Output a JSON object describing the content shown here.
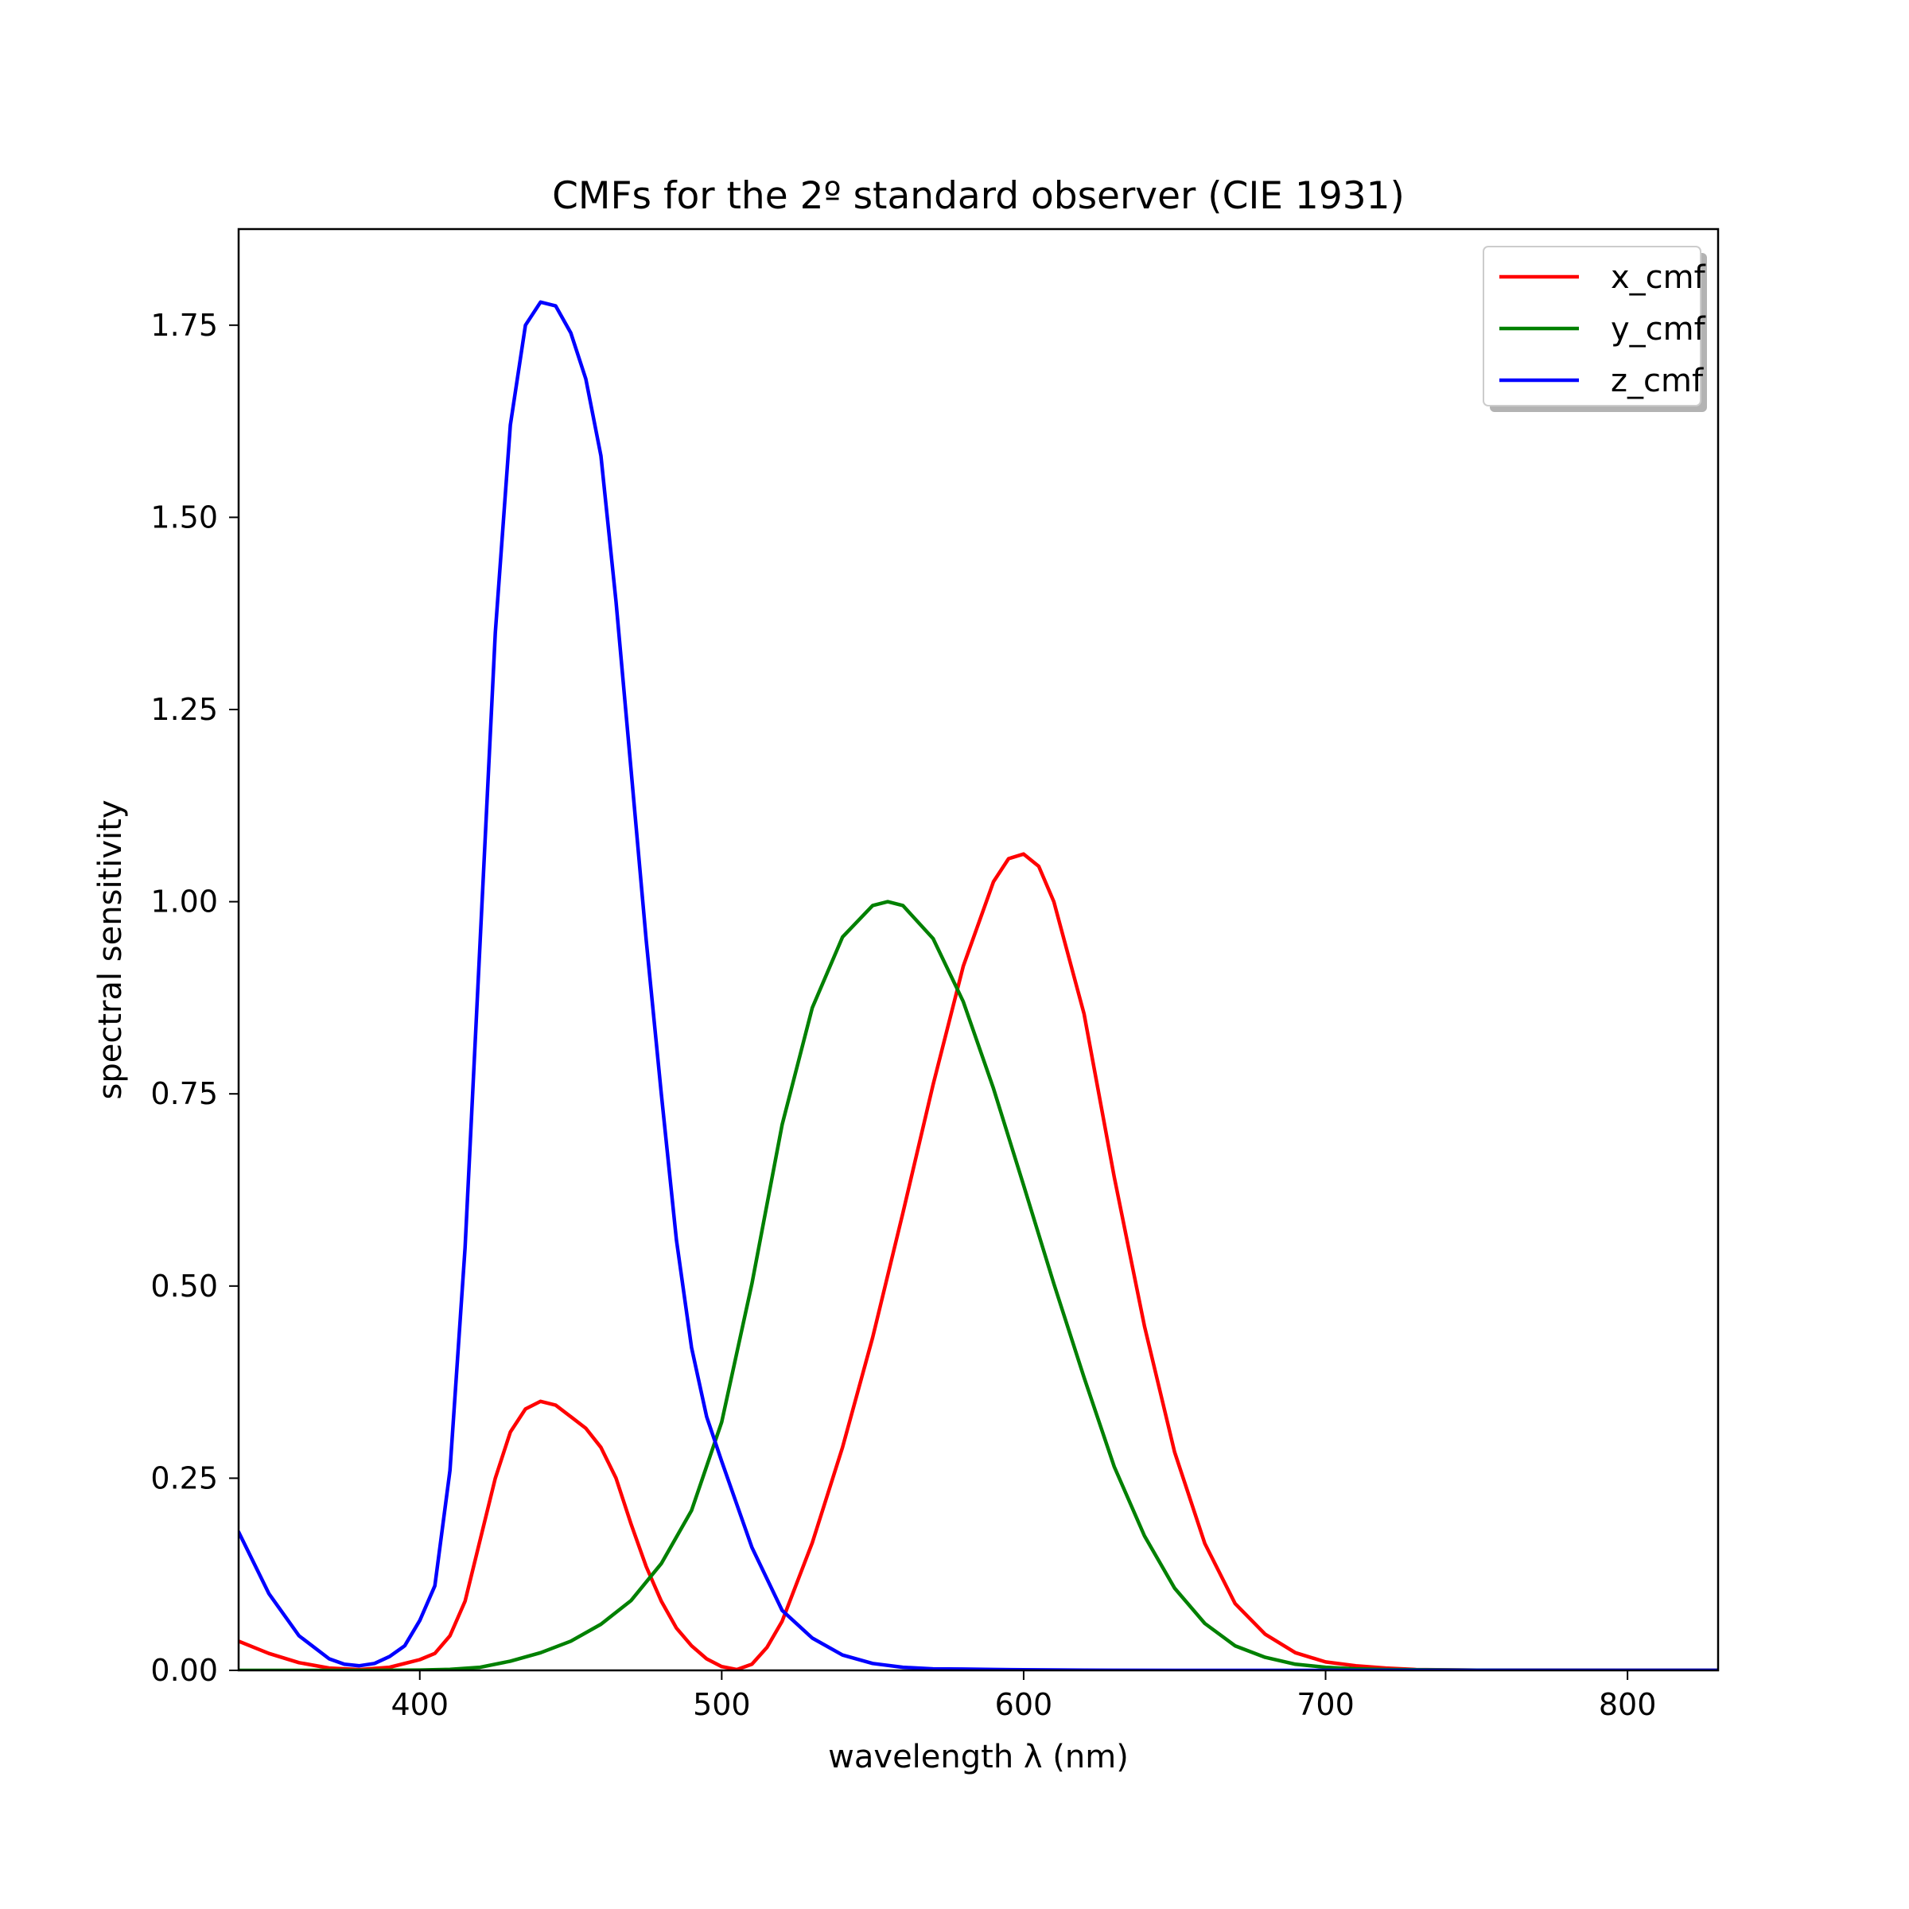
{
  "chart_data": {
    "type": "line",
    "title": "CMFs for the 2º standard observer (CIE 1931)",
    "xlabel": "wavelength λ (nm)",
    "ylabel": "spectral sensitivity",
    "xlim": [
      340,
      830
    ],
    "ylim": [
      0,
      1.875
    ],
    "xticks": [
      400,
      500,
      600,
      700,
      800
    ],
    "xtick_labels": [
      "400",
      "500",
      "600",
      "700",
      "800"
    ],
    "yticks": [
      0,
      0.25,
      0.5,
      0.75,
      1.0,
      1.25,
      1.5,
      1.75
    ],
    "ytick_labels": [
      "0.00",
      "0.25",
      "0.50",
      "0.75",
      "1.00",
      "1.25",
      "1.50",
      "1.75"
    ],
    "legend_position": "top-right",
    "grid": false,
    "series": [
      {
        "name": "x_cmf",
        "color": "#ff0000",
        "points": [
          [
            340,
            0.038
          ],
          [
            350,
            0.022
          ],
          [
            360,
            0.01
          ],
          [
            370,
            0.003
          ],
          [
            380,
            0.001
          ],
          [
            390,
            0.004
          ],
          [
            400,
            0.014
          ],
          [
            405,
            0.022
          ],
          [
            410,
            0.045
          ],
          [
            415,
            0.09
          ],
          [
            420,
            0.17
          ],
          [
            425,
            0.25
          ],
          [
            430,
            0.31
          ],
          [
            435,
            0.34
          ],
          [
            440,
            0.35
          ],
          [
            445,
            0.345
          ],
          [
            450,
            0.33
          ],
          [
            455,
            0.315
          ],
          [
            460,
            0.29
          ],
          [
            465,
            0.25
          ],
          [
            470,
            0.19
          ],
          [
            475,
            0.135
          ],
          [
            480,
            0.09
          ],
          [
            485,
            0.055
          ],
          [
            490,
            0.032
          ],
          [
            495,
            0.015
          ],
          [
            500,
            0.005
          ],
          [
            505,
            0.001
          ],
          [
            510,
            0.008
          ],
          [
            515,
            0.03
          ],
          [
            520,
            0.064
          ],
          [
            530,
            0.166
          ],
          [
            540,
            0.29
          ],
          [
            550,
            0.433
          ],
          [
            560,
            0.595
          ],
          [
            570,
            0.762
          ],
          [
            580,
            0.916
          ],
          [
            590,
            1.026
          ],
          [
            595,
            1.056
          ],
          [
            600,
            1.062
          ],
          [
            605,
            1.046
          ],
          [
            610,
            1.0
          ],
          [
            620,
            0.854
          ],
          [
            630,
            0.642
          ],
          [
            640,
            0.448
          ],
          [
            650,
            0.284
          ],
          [
            660,
            0.165
          ],
          [
            670,
            0.087
          ],
          [
            680,
            0.047
          ],
          [
            690,
            0.023
          ],
          [
            700,
            0.011
          ],
          [
            710,
            0.006
          ],
          [
            720,
            0.003
          ],
          [
            730,
            0.001
          ],
          [
            750,
            0.0003
          ],
          [
            800,
            0.0
          ],
          [
            830,
            0.0
          ]
        ]
      },
      {
        "name": "y_cmf",
        "color": "#008000",
        "points": [
          [
            340,
            0.0
          ],
          [
            380,
            0.0
          ],
          [
            400,
            0.0004
          ],
          [
            410,
            0.0012
          ],
          [
            420,
            0.004
          ],
          [
            430,
            0.012
          ],
          [
            440,
            0.023
          ],
          [
            450,
            0.038
          ],
          [
            460,
            0.06
          ],
          [
            470,
            0.091
          ],
          [
            480,
            0.139
          ],
          [
            490,
            0.208
          ],
          [
            500,
            0.323
          ],
          [
            510,
            0.503
          ],
          [
            520,
            0.71
          ],
          [
            530,
            0.862
          ],
          [
            540,
            0.954
          ],
          [
            550,
            0.995
          ],
          [
            555,
            1.0
          ],
          [
            560,
            0.995
          ],
          [
            570,
            0.952
          ],
          [
            580,
            0.87
          ],
          [
            590,
            0.757
          ],
          [
            600,
            0.631
          ],
          [
            610,
            0.503
          ],
          [
            620,
            0.381
          ],
          [
            630,
            0.265
          ],
          [
            640,
            0.175
          ],
          [
            650,
            0.107
          ],
          [
            660,
            0.061
          ],
          [
            670,
            0.032
          ],
          [
            680,
            0.017
          ],
          [
            690,
            0.008
          ],
          [
            700,
            0.004
          ],
          [
            710,
            0.002
          ],
          [
            720,
            0.001
          ],
          [
            750,
            0.0002
          ],
          [
            800,
            0.0
          ],
          [
            830,
            0.0
          ]
        ]
      },
      {
        "name": "z_cmf",
        "color": "#0000ff",
        "points": [
          [
            340,
            0.18
          ],
          [
            350,
            0.1
          ],
          [
            360,
            0.045
          ],
          [
            370,
            0.015
          ],
          [
            375,
            0.008
          ],
          [
            380,
            0.006
          ],
          [
            385,
            0.009
          ],
          [
            390,
            0.018
          ],
          [
            395,
            0.032
          ],
          [
            400,
            0.065
          ],
          [
            405,
            0.11
          ],
          [
            410,
            0.26
          ],
          [
            415,
            0.55
          ],
          [
            420,
            0.95
          ],
          [
            425,
            1.35
          ],
          [
            430,
            1.62
          ],
          [
            435,
            1.75
          ],
          [
            440,
            1.78
          ],
          [
            445,
            1.775
          ],
          [
            450,
            1.74
          ],
          [
            455,
            1.68
          ],
          [
            460,
            1.58
          ],
          [
            465,
            1.39
          ],
          [
            470,
            1.17
          ],
          [
            475,
            0.95
          ],
          [
            480,
            0.75
          ],
          [
            485,
            0.56
          ],
          [
            490,
            0.42
          ],
          [
            495,
            0.33
          ],
          [
            500,
            0.272
          ],
          [
            510,
            0.16
          ],
          [
            520,
            0.078
          ],
          [
            530,
            0.042
          ],
          [
            540,
            0.02
          ],
          [
            550,
            0.009
          ],
          [
            560,
            0.004
          ],
          [
            570,
            0.002
          ],
          [
            580,
            0.0017
          ],
          [
            590,
            0.0011
          ],
          [
            600,
            0.0008
          ],
          [
            620,
            0.0002
          ],
          [
            650,
            0.0
          ],
          [
            700,
            0.0
          ],
          [
            830,
            0.0
          ]
        ]
      }
    ]
  }
}
